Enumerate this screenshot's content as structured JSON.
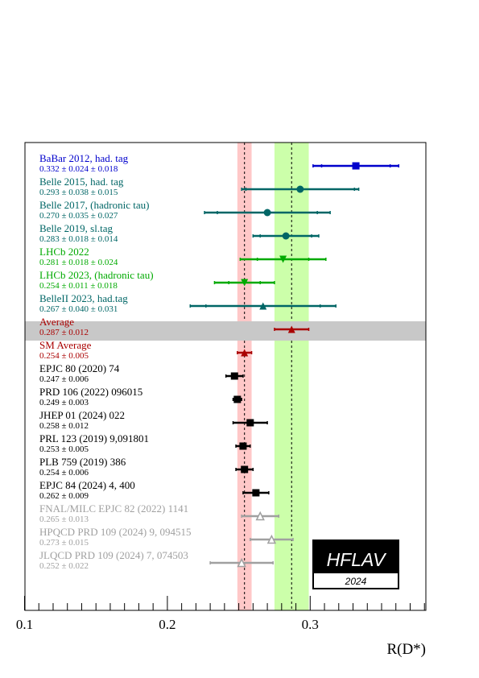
{
  "chart_data": {
    "type": "scatter",
    "xlabel": "R(D*)",
    "xlim": [
      0.1,
      0.38
    ],
    "xticks": [
      "0.1",
      "0.2",
      "0.3"
    ],
    "xtick_values": [
      0.1,
      0.2,
      0.3
    ],
    "bands": [
      {
        "center": 0.254,
        "halfwidth": 0.005,
        "color": "#ffc8c8"
      },
      {
        "center": 0.287,
        "halfwidth": 0.012,
        "color": "#ccffaa"
      }
    ],
    "entries": [
      {
        "label": "BaBar 2012, had. tag",
        "value_text": "0.332 ± 0.024 ± 0.018",
        "x": 0.332,
        "stat": 0.024,
        "tot": 0.03,
        "color": "#0000cc",
        "marker": "square"
      },
      {
        "label": "Belle 2015, had. tag",
        "value_text": "0.293 ± 0.038 ± 0.015",
        "x": 0.293,
        "stat": 0.038,
        "tot": 0.041,
        "color": "#006666",
        "marker": "circle"
      },
      {
        "label": "Belle 2017, (hadronic tau)",
        "value_text": "0.270 ± 0.035 ± 0.027",
        "x": 0.27,
        "stat": 0.035,
        "tot": 0.044,
        "color": "#006666",
        "marker": "circle"
      },
      {
        "label": "Belle 2019, sl.tag",
        "value_text": "0.283 ± 0.018 ± 0.014",
        "x": 0.283,
        "stat": 0.018,
        "tot": 0.023,
        "color": "#006666",
        "marker": "circle"
      },
      {
        "label": "LHCb 2022",
        "value_text": "0.281 ± 0.018 ± 0.024",
        "x": 0.281,
        "stat": 0.018,
        "tot": 0.03,
        "color": "#00aa00",
        "marker": "tri-down"
      },
      {
        "label": "LHCb 2023, (hadronic tau)",
        "value_text": "0.254 ± 0.011 ± 0.018",
        "x": 0.254,
        "stat": 0.011,
        "tot": 0.021,
        "color": "#00aa00",
        "marker": "tri-down"
      },
      {
        "label": "BelleII 2023, had.tag",
        "value_text": "0.267 ± 0.040 ± 0.031",
        "x": 0.267,
        "stat": 0.04,
        "tot": 0.051,
        "color": "#006666",
        "marker": "tri-up"
      },
      {
        "label": "Average",
        "value_text": "0.287 ± 0.012",
        "x": 0.287,
        "stat": 0.012,
        "tot": 0.012,
        "color": "#aa0000",
        "marker": "tri-up",
        "highlight": true
      },
      {
        "label": "SM Average",
        "value_text": "0.254 ± 0.005",
        "x": 0.254,
        "stat": 0.005,
        "tot": 0.005,
        "color": "#aa0000",
        "marker": "tri-up"
      },
      {
        "label": "EPJC 80 (2020) 74",
        "value_text": "0.247 ± 0.006",
        "x": 0.247,
        "stat": 0.006,
        "tot": 0.006,
        "color": "#000000",
        "marker": "square"
      },
      {
        "label": "PRD 106 (2022) 096015",
        "value_text": "0.249 ± 0.003",
        "x": 0.249,
        "stat": 0.003,
        "tot": 0.003,
        "color": "#000000",
        "marker": "square"
      },
      {
        "label": "JHEP 01 (2024) 022",
        "value_text": "0.258 ± 0.012",
        "x": 0.258,
        "stat": 0.012,
        "tot": 0.012,
        "color": "#000000",
        "marker": "square"
      },
      {
        "label": "PRL 123 (2019) 9,091801",
        "value_text": "0.253 ± 0.005",
        "x": 0.253,
        "stat": 0.005,
        "tot": 0.005,
        "color": "#000000",
        "marker": "square"
      },
      {
        "label": "PLB 759 (2019) 386",
        "value_text": "0.254 ± 0.006",
        "x": 0.254,
        "stat": 0.006,
        "tot": 0.006,
        "color": "#000000",
        "marker": "square"
      },
      {
        "label": "EPJC 84 (2024) 4, 400",
        "value_text": "0.262 ± 0.009",
        "x": 0.262,
        "stat": 0.009,
        "tot": 0.009,
        "color": "#000000",
        "marker": "square"
      },
      {
        "label": "FNAL/MILC EPJC 82 (2022) 1141",
        "value_text": "0.265 ± 0.013",
        "x": 0.265,
        "stat": 0.013,
        "tot": 0.013,
        "color": "#a0a0a0",
        "marker": "tri-up-open"
      },
      {
        "label": "HPQCD PRD 109 (2024) 9, 094515",
        "value_text": "0.273 ± 0.015",
        "x": 0.273,
        "stat": 0.015,
        "tot": 0.015,
        "color": "#a0a0a0",
        "marker": "tri-up-open"
      },
      {
        "label": "JLQCD PRD 109 (2024) 7, 074503",
        "value_text": "0.252 ± 0.022",
        "x": 0.252,
        "stat": 0.022,
        "tot": 0.022,
        "color": "#a0a0a0",
        "marker": "tri-up-open"
      }
    ]
  },
  "logo": {
    "name": "HFLAV",
    "year": "2024"
  }
}
